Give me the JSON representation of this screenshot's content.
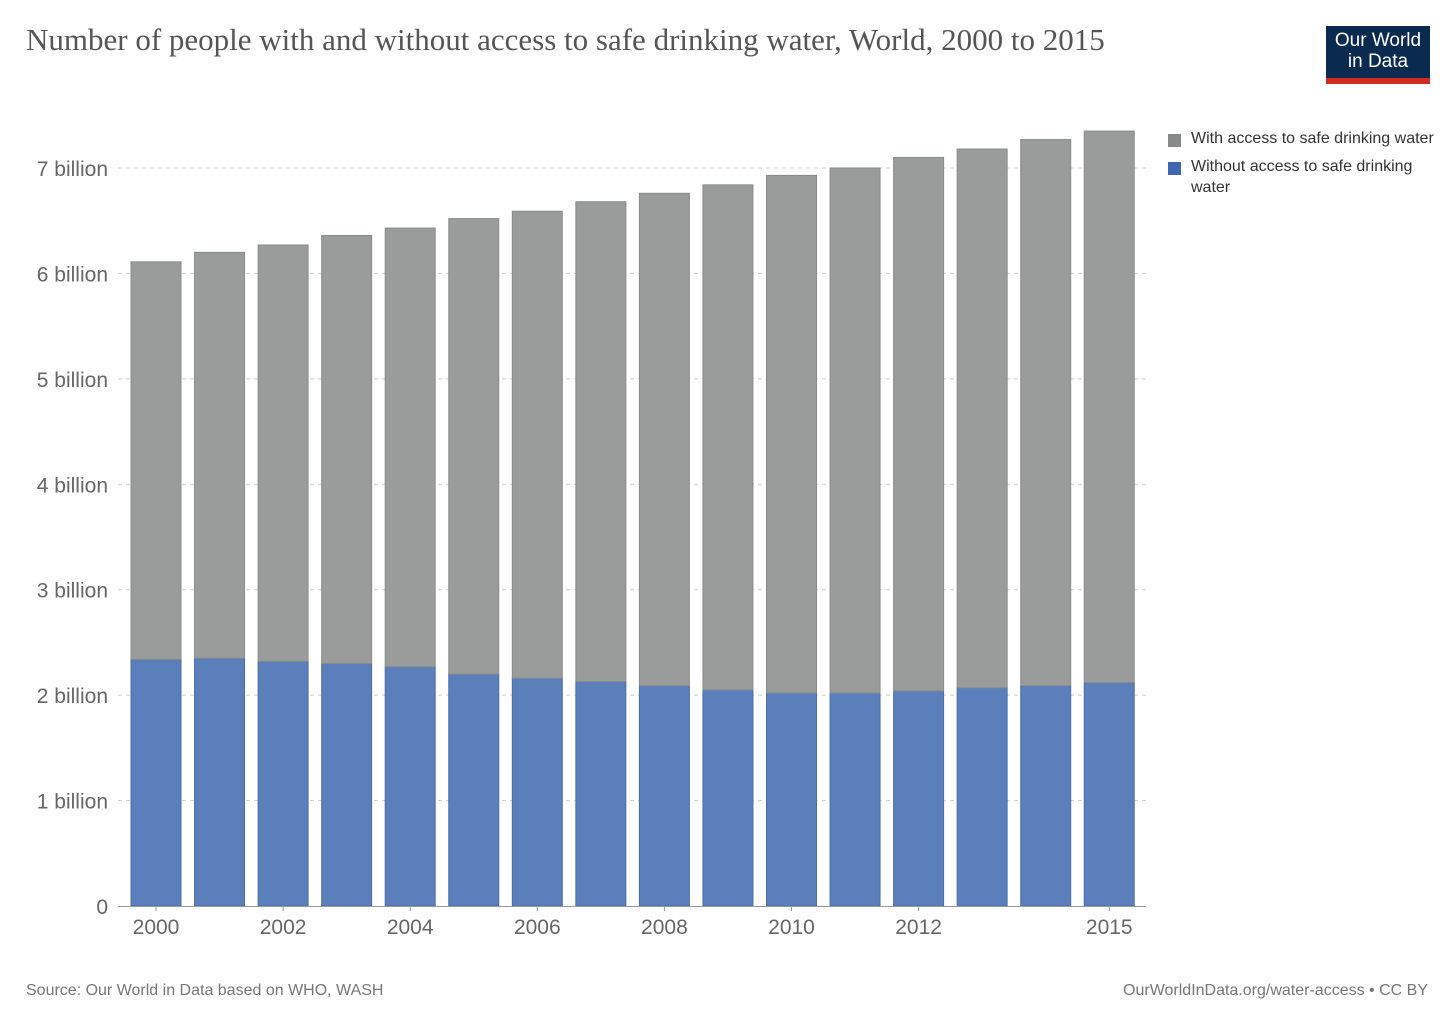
{
  "chart_data": {
    "type": "bar",
    "stacked": true,
    "title": "Number of people with and without access to safe drinking water, World, 2000 to 2015",
    "categories": [
      "2000",
      "2001",
      "2002",
      "2003",
      "2004",
      "2005",
      "2006",
      "2007",
      "2008",
      "2009",
      "2010",
      "2011",
      "2012",
      "2013",
      "2014",
      "2015"
    ],
    "x_tick_labels": [
      "2000",
      "2002",
      "2004",
      "2006",
      "2008",
      "2010",
      "2012",
      "2015"
    ],
    "series": [
      {
        "name": "Without access to safe drinking water",
        "color": "#5b7fbb",
        "values": [
          2.34,
          2.35,
          2.32,
          2.3,
          2.27,
          2.2,
          2.16,
          2.13,
          2.09,
          2.05,
          2.02,
          2.02,
          2.04,
          2.07,
          2.09,
          2.12
        ]
      },
      {
        "name": "With access to safe drinking water",
        "color": "#9a9c9b",
        "values": [
          3.77,
          3.85,
          3.95,
          4.06,
          4.16,
          4.32,
          4.43,
          4.55,
          4.67,
          4.79,
          4.91,
          4.98,
          5.06,
          5.11,
          5.18,
          5.23
        ]
      }
    ],
    "y_ticks": [
      {
        "value": 0,
        "label": "0"
      },
      {
        "value": 1,
        "label": "1 billion"
      },
      {
        "value": 2,
        "label": "2 billion"
      },
      {
        "value": 3,
        "label": "3 billion"
      },
      {
        "value": 4,
        "label": "4 billion"
      },
      {
        "value": 5,
        "label": "5 billion"
      },
      {
        "value": 6,
        "label": "6 billion"
      },
      {
        "value": 7,
        "label": "7 billion"
      }
    ],
    "ylim": [
      0,
      7.4
    ],
    "yunit": "billion",
    "grid": true,
    "legend_position": "right"
  },
  "legend": [
    "With access to safe drinking water",
    "Without access to safe drinking water"
  ],
  "logo": {
    "line1": "Our World",
    "line2": "in Data"
  },
  "footer": {
    "source": "Source: Our World in Data based on WHO, WASH",
    "url": "OurWorldInData.org/water-access • CC BY"
  }
}
